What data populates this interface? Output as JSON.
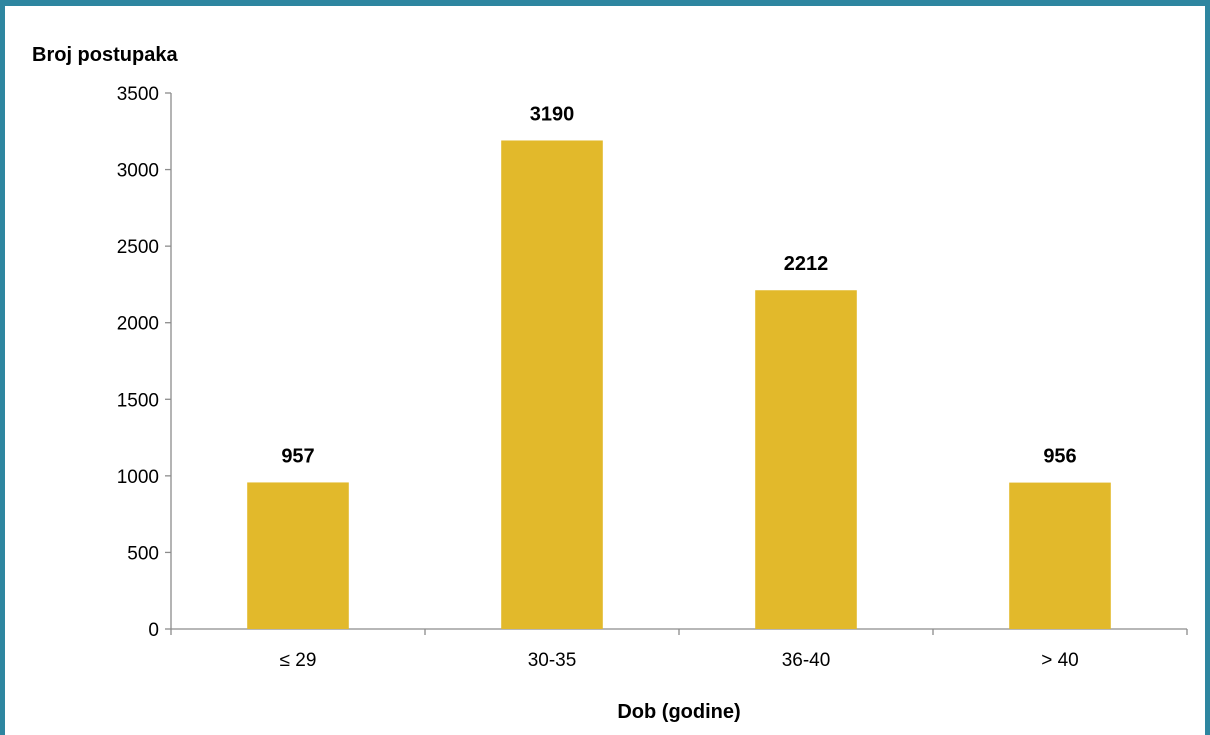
{
  "chart_data": {
    "type": "bar",
    "title": "",
    "ylabel": "Broj postupaka",
    "xlabel": "Dob (godine)",
    "categories": [
      "≤ 29",
      "30-35",
      "36-40",
      "> 40"
    ],
    "values": [
      957,
      3190,
      2212,
      956
    ],
    "ylim": [
      0,
      3500
    ],
    "yticks": [
      0,
      500,
      1000,
      1500,
      2000,
      2500,
      3000,
      3500
    ],
    "data_labels": [
      "957",
      "3190",
      "2212",
      "956"
    ],
    "grid": false,
    "legend": "none",
    "colors": {
      "bar": "#e2b92b",
      "frame": "#2e86a0",
      "axis": "#8c8c8c"
    }
  }
}
